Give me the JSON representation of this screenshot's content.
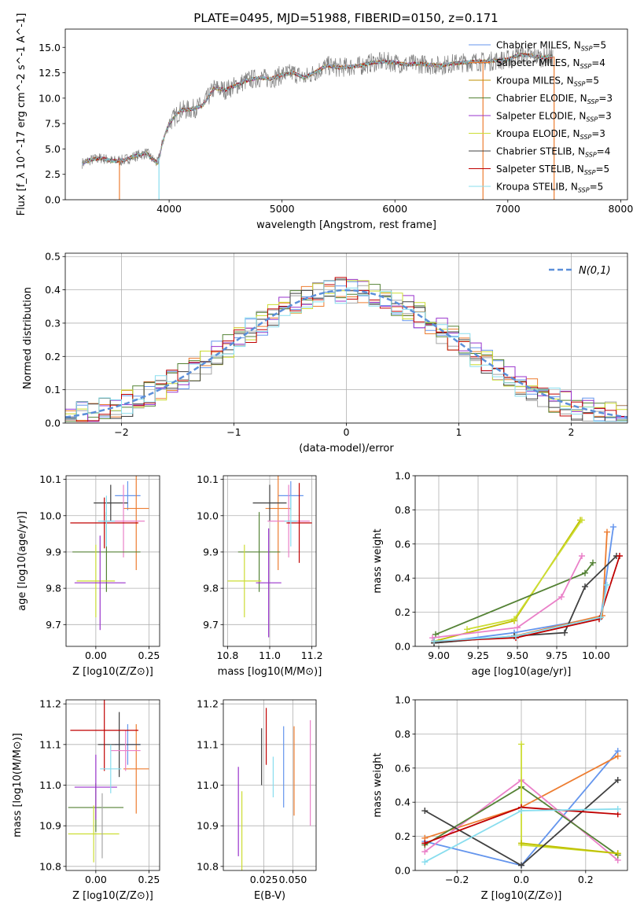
{
  "chart_data": [
    {
      "id": "spectrum",
      "type": "line",
      "title": "PLATE=0495, MJD=51988, FIBERID=0150, z=0.171",
      "xlabel": "wavelength [Angstrom, rest frame]",
      "ylabel": "Flux [f_λ 10^-17 erg cm^-2 s^-1 A^-1]",
      "xlim": [
        3080,
        8060
      ],
      "ylim": [
        0,
        16.8
      ],
      "xticks": [
        "4000",
        "5000",
        "6000",
        "7000",
        "8000"
      ],
      "yticks": [
        "0.0",
        "2.5",
        "5.0",
        "7.5",
        "10.0",
        "12.5",
        "15.0"
      ],
      "legend_position": "right",
      "data_color": "#7f7f7f",
      "model_colors": [
        "#6495ED",
        "#ED7D31",
        "#A5A5A5",
        "#548235",
        "#9933CC",
        "#CCDD33",
        "#404040",
        "#C00000",
        "#88DDEE"
      ],
      "legend": [
        "Chabrier MILES, N_SSP=5",
        "Salpeter MILES, N_SSP=4",
        "Kroupa MILES, N_SSP=5",
        "Chabrier ELODIE, N_SSP=3",
        "Salpeter ELODIE, N_SSP=3",
        "Kroupa ELODIE, N_SSP=3",
        "Chabrier STELIB, N_SSP=4",
        "Salpeter STELIB, N_SSP=5",
        "Kroupa STELIB, N_SSP=5"
      ],
      "legend_colors": [
        "#6495ED",
        "#ED7D31",
        "#BF8F00",
        "#548235",
        "#9933CC",
        "#CCDD33",
        "#404040",
        "#C00000",
        "#88DDEE"
      ],
      "model_curve": {
        "x": [
          3230,
          3300,
          3400,
          3500,
          3600,
          3700,
          3800,
          3850,
          3900,
          3950,
          4000,
          4100,
          4200,
          4300,
          4400,
          4500,
          4600,
          4700,
          4800,
          4900,
          5000,
          5100,
          5200,
          5300,
          5400,
          5500,
          5600,
          5700,
          5800,
          5900,
          6000,
          6100,
          6200,
          6300,
          6400,
          6500,
          6600,
          6700,
          6800,
          6900,
          7000,
          7100,
          7200,
          7300,
          7400
        ],
        "y": [
          3.6,
          3.9,
          4.1,
          3.8,
          3.9,
          4.3,
          4.6,
          4.0,
          3.6,
          6.0,
          7.5,
          8.8,
          8.9,
          9.3,
          11.0,
          10.8,
          11.3,
          11.8,
          12.0,
          11.9,
          12.3,
          12.5,
          12.0,
          12.6,
          13.2,
          13.0,
          13.1,
          13.2,
          13.5,
          13.6,
          13.5,
          13.3,
          13.4,
          13.3,
          13.2,
          13.4,
          13.5,
          13.6,
          13.6,
          13.7,
          13.8,
          14.3,
          14.2,
          14.0,
          14.1
        ]
      },
      "data_scatter": 0.7
    },
    {
      "id": "residuals",
      "type": "histogram",
      "xlabel": "(data-model)/error",
      "ylabel": "Normed distribution",
      "xlim": [
        -2.5,
        2.5
      ],
      "ylim": [
        0,
        0.51
      ],
      "xticks": [
        "−2",
        "−1",
        "0",
        "1",
        "2"
      ],
      "yticks": [
        "0.0",
        "0.1",
        "0.2",
        "0.3",
        "0.4",
        "0.5"
      ],
      "reference_label": "N(0,1)",
      "reference_color": "#5B8FD9",
      "bin_width": 0.1,
      "colors": [
        "#6495ED",
        "#ED7D31",
        "#A5A5A5",
        "#548235",
        "#9933CC",
        "#CCDD33",
        "#404040",
        "#C00000",
        "#88DDEE"
      ]
    },
    {
      "id": "age_vs_Z",
      "type": "errorbar",
      "xlabel": "Z [log10(Z/Z⊙)]",
      "ylabel": "age [log10(age/yr)]",
      "xlim": [
        -0.14,
        0.3
      ],
      "ylim": [
        9.64,
        10.11
      ],
      "xticks": [
        "0.00",
        "0.25"
      ],
      "yticks": [
        "9.7",
        "9.8",
        "9.9",
        "10.0",
        "10.1"
      ],
      "points": [
        {
          "x": 0.15,
          "y": 10.055,
          "xerr": 0.06,
          "yerr": 0.04,
          "color": "#6495ED"
        },
        {
          "x": 0.19,
          "y": 10.02,
          "xerr": 0.06,
          "yerr": 0.17,
          "color": "#ED7D31"
        },
        {
          "x": 0.07,
          "y": 10.035,
          "xerr": 0.08,
          "yerr": 0.05,
          "color": "#404040"
        },
        {
          "x": 0.13,
          "y": 9.985,
          "xerr": 0.1,
          "yerr": 0.1,
          "color": "#EA80C8"
        },
        {
          "x": 0.04,
          "y": 9.98,
          "xerr": 0.16,
          "yerr": 0.07,
          "color": "#C00000"
        },
        {
          "x": 0.05,
          "y": 9.9,
          "xerr": 0.16,
          "yerr": 0.11,
          "color": "#548235"
        },
        {
          "x": 0.0,
          "y": 9.82,
          "xerr": 0.09,
          "yerr": 0.1,
          "color": "#CCDD33"
        },
        {
          "x": 0.02,
          "y": 9.815,
          "xerr": 0.12,
          "yerr": 0.13,
          "color": "#9933CC"
        },
        {
          "x": 0.05,
          "y": 9.985,
          "xerr": 0.04,
          "yerr": 0.07,
          "color": "#88DDEE"
        }
      ]
    },
    {
      "id": "age_vs_mass",
      "type": "errorbar",
      "xlabel": "mass [log10(M/M⊙)]",
      "ylabel": "",
      "xlim": [
        10.78,
        11.22
      ],
      "ylim": [
        9.64,
        10.11
      ],
      "xticks": [
        "10.8",
        "11.0",
        "11.2"
      ],
      "yticks": [
        "9.7",
        "9.8",
        "9.9",
        "10.0",
        "10.1"
      ],
      "points": [
        {
          "x": 11.1,
          "y": 10.055,
          "xerr": 0.06,
          "yerr": 0.04,
          "color": "#6495ED"
        },
        {
          "x": 11.04,
          "y": 10.02,
          "xerr": 0.06,
          "yerr": 0.17,
          "color": "#ED7D31"
        },
        {
          "x": 11.0,
          "y": 10.035,
          "xerr": 0.08,
          "yerr": 0.05,
          "color": "#404040"
        },
        {
          "x": 11.09,
          "y": 9.985,
          "xerr": 0.1,
          "yerr": 0.1,
          "color": "#EA80C8"
        },
        {
          "x": 11.14,
          "y": 9.98,
          "xerr": 0.06,
          "yerr": 0.11,
          "color": "#C00000"
        },
        {
          "x": 10.95,
          "y": 9.9,
          "xerr": 0.1,
          "yerr": 0.11,
          "color": "#548235"
        },
        {
          "x": 10.88,
          "y": 9.82,
          "xerr": 0.08,
          "yerr": 0.1,
          "color": "#CCDD33"
        },
        {
          "x": 10.995,
          "y": 9.815,
          "xerr": 0.06,
          "yerr": 0.15,
          "color": "#9933CC"
        },
        {
          "x": 11.1,
          "y": 9.985,
          "xerr": 0.03,
          "yerr": 0.07,
          "color": "#88DDEE"
        }
      ]
    },
    {
      "id": "weight_vs_age",
      "type": "line",
      "xlabel": "age [log10(age/yr)]",
      "ylabel": "mass weight",
      "xlim": [
        8.85,
        10.2
      ],
      "ylim": [
        0,
        1.0
      ],
      "xticks": [
        "9.00",
        "9.25",
        "9.50",
        "9.75",
        "10.00"
      ],
      "yticks": [
        "0.0",
        "0.2",
        "0.4",
        "0.6",
        "0.8",
        "1.0"
      ],
      "series": [
        {
          "color": "#6495ED",
          "x": [
            8.97,
            9.48,
            10.03,
            10.11
          ],
          "y": [
            0.02,
            0.08,
            0.17,
            0.7
          ]
        },
        {
          "color": "#ED7D31",
          "x": [
            8.97,
            9.48,
            10.04,
            10.07
          ],
          "y": [
            0.02,
            0.06,
            0.18,
            0.67
          ]
        },
        {
          "color": "#BFBF00",
          "x": [
            8.97,
            9.48,
            9.9
          ],
          "y": [
            0.03,
            0.15,
            0.74
          ]
        },
        {
          "color": "#CCDD33",
          "x": [
            9.18,
            9.48,
            9.91
          ],
          "y": [
            0.1,
            0.16,
            0.74
          ]
        },
        {
          "color": "#548235",
          "x": [
            8.98,
            9.93,
            9.98
          ],
          "y": [
            0.07,
            0.43,
            0.49
          ]
        },
        {
          "color": "#EA80C8",
          "x": [
            8.96,
            9.5,
            9.78,
            9.91
          ],
          "y": [
            0.05,
            0.11,
            0.29,
            0.53
          ]
        },
        {
          "color": "#404040",
          "x": [
            8.97,
            9.48,
            9.8,
            9.93,
            10.13
          ],
          "y": [
            0.02,
            0.06,
            0.08,
            0.35,
            0.53
          ]
        },
        {
          "color": "#C00000",
          "x": [
            8.97,
            9.49,
            10.02,
            10.15
          ],
          "y": [
            0.03,
            0.05,
            0.16,
            0.53
          ]
        },
        {
          "color": "#88DDEE",
          "x": [
            8.97,
            9.49,
            10.03,
            10.07
          ],
          "y": [
            0.03,
            0.06,
            0.17,
            0.36
          ]
        }
      ]
    },
    {
      "id": "mass_vs_Z",
      "type": "errorbar",
      "xlabel": "Z [log10(Z/Z⊙)]",
      "ylabel": "mass [log10(M/M⊙)]",
      "xlim": [
        -0.14,
        0.3
      ],
      "ylim": [
        10.79,
        11.21
      ],
      "xticks": [
        "0.00",
        "0.25"
      ],
      "yticks": [
        "10.8",
        "10.9",
        "11.0",
        "11.1",
        "11.2"
      ],
      "points": [
        {
          "x": 0.15,
          "y": 11.1,
          "xerr": 0.06,
          "yerr": 0.05,
          "color": "#6495ED"
        },
        {
          "x": 0.19,
          "y": 11.04,
          "xerr": 0.06,
          "yerr": 0.11,
          "color": "#ED7D31"
        },
        {
          "x": 0.11,
          "y": 11.1,
          "xerr": 0.1,
          "yerr": 0.08,
          "color": "#404040"
        },
        {
          "x": 0.14,
          "y": 11.085,
          "xerr": 0.07,
          "yerr": 0.05,
          "color": "#EA80C8"
        },
        {
          "x": 0.04,
          "y": 11.135,
          "xerr": 0.16,
          "yerr": 0.1,
          "color": "#C00000"
        },
        {
          "x": 0.0,
          "y": 10.945,
          "xerr": 0.13,
          "yerr": 0.06,
          "color": "#548235"
        },
        {
          "x": -0.01,
          "y": 10.88,
          "xerr": 0.12,
          "yerr": 0.07,
          "color": "#CCDD33"
        },
        {
          "x": 0.0,
          "y": 10.995,
          "xerr": 0.1,
          "yerr": 0.08,
          "color": "#9933CC"
        },
        {
          "x": 0.07,
          "y": 11.04,
          "xerr": 0.05,
          "yerr": 0.06,
          "color": "#88DDEE"
        },
        {
          "x": 0.03,
          "y": 10.9,
          "xerr": 0.0,
          "yerr": 0.08,
          "color": "#A5A5A5"
        }
      ]
    },
    {
      "id": "mass_vs_ebv",
      "type": "errorbar",
      "xlabel": "E(B-V)",
      "ylabel": "",
      "xlim": [
        -0.01,
        0.07
      ],
      "ylim": [
        10.79,
        11.21
      ],
      "xticks": [
        "0.025",
        "0.050"
      ],
      "yticks": [
        "10.8",
        "10.9",
        "11.0",
        "11.1",
        "11.2"
      ],
      "points": [
        {
          "x": 0.003,
          "y": 10.935,
          "yerr": 0.11,
          "color": "#9933CC"
        },
        {
          "x": 0.006,
          "y": 10.885,
          "yerr": 0.1,
          "color": "#CCDD33"
        },
        {
          "x": 0.023,
          "y": 11.07,
          "yerr": 0.07,
          "color": "#404040"
        },
        {
          "x": 0.027,
          "y": 11.12,
          "yerr": 0.07,
          "color": "#C00000"
        },
        {
          "x": 0.033,
          "y": 11.02,
          "yerr": 0.05,
          "color": "#88DDEE"
        },
        {
          "x": 0.042,
          "y": 11.045,
          "yerr": 0.1,
          "color": "#6495ED"
        },
        {
          "x": 0.051,
          "y": 11.035,
          "yerr": 0.11,
          "color": "#ED7D31"
        },
        {
          "x": 0.065,
          "y": 11.03,
          "yerr": 0.13,
          "color": "#EA80C8"
        }
      ]
    },
    {
      "id": "weight_vs_Z",
      "type": "line",
      "xlabel": "Z [log10(Z/Z⊙)]",
      "ylabel": "mass weight",
      "xlim": [
        -0.33,
        0.33
      ],
      "ylim": [
        0,
        1.0
      ],
      "xticks": [
        "−0.2",
        "0.0",
        "0.2"
      ],
      "yticks": [
        "0.0",
        "0.2",
        "0.4",
        "0.6",
        "0.8",
        "1.0"
      ],
      "series": [
        {
          "color": "#6495ED",
          "x": [
            -0.3,
            0.0,
            0.3
          ],
          "y": [
            0.17,
            0.03,
            0.7
          ]
        },
        {
          "color": "#ED7D31",
          "x": [
            -0.3,
            0.0,
            0.3
          ],
          "y": [
            0.19,
            0.37,
            0.67
          ]
        },
        {
          "color": "#EA80C8",
          "x": [
            -0.3,
            0.0,
            0.3
          ],
          "y": [
            0.11,
            0.53,
            0.06
          ]
        },
        {
          "color": "#548235",
          "x": [
            -0.3,
            0.0,
            0.3
          ],
          "y": [
            0.15,
            0.49,
            0.09
          ]
        },
        {
          "color": "#CCDD33",
          "x": [
            0.0,
            0.0,
            0.3
          ],
          "y": [
            0.74,
            0.15,
            0.1
          ]
        },
        {
          "color": "#BFBF00",
          "x": [
            0.0,
            0.3
          ],
          "y": [
            0.16,
            0.1
          ]
        },
        {
          "color": "#404040",
          "x": [
            -0.3,
            0.0,
            0.3
          ],
          "y": [
            0.35,
            0.03,
            0.53
          ]
        },
        {
          "color": "#C00000",
          "x": [
            -0.3,
            0.0,
            0.3
          ],
          "y": [
            0.16,
            0.37,
            0.33
          ]
        },
        {
          "color": "#88DDEE",
          "x": [
            -0.3,
            0.0,
            0.3
          ],
          "y": [
            0.05,
            0.35,
            0.36
          ]
        }
      ]
    }
  ]
}
